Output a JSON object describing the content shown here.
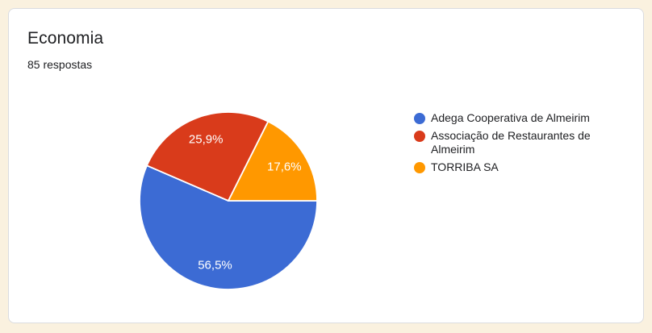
{
  "card": {
    "title": "Economia",
    "subtitle": "85 respostas"
  },
  "chart_data": {
    "type": "pie",
    "title": "Economia",
    "responses_text": "85 respostas",
    "labels": [
      "Adega Cooperativa de Almeirim",
      "Associação de Restaurantes de Almeirim",
      "TORRIBA SA"
    ],
    "values": [
      56.5,
      25.9,
      17.6
    ],
    "slice_labels": [
      "56,5%",
      "25,9%",
      "17,6%"
    ],
    "colors": [
      "#3C6BD4",
      "#D93B1B",
      "#FF9800"
    ],
    "slice_label_color": "#FFFFFF",
    "legend_position": "right",
    "start_angle": "3-oclock, clockwise",
    "grid": "off"
  },
  "theme": {
    "page_background": "#FAF1DF",
    "card_background": "#FFFFFF",
    "card_border": "#DADCE0",
    "text_color": "#202124"
  }
}
